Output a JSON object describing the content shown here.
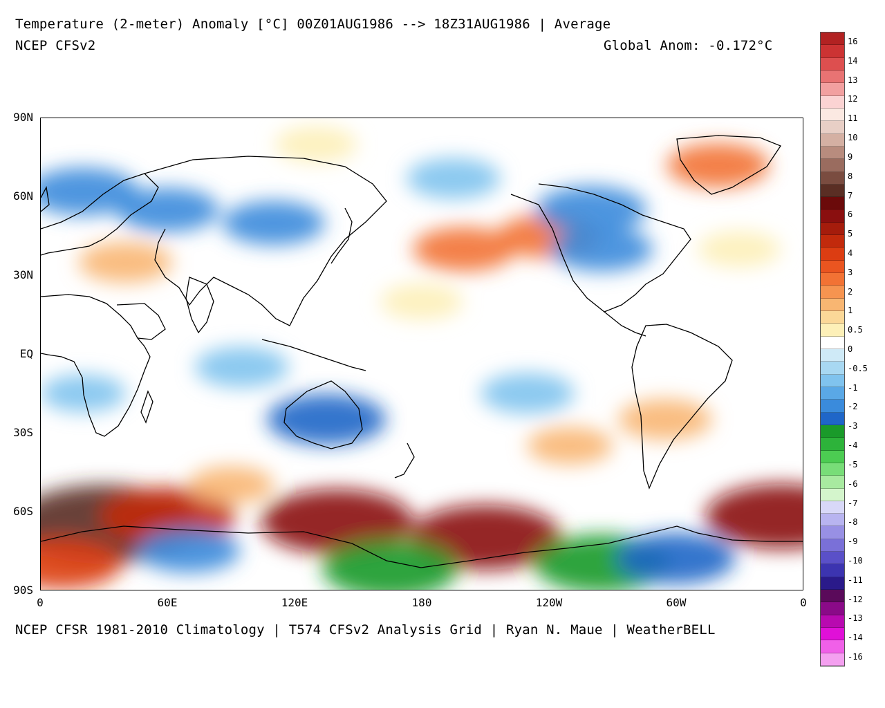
{
  "header": {
    "title": "Temperature (2-meter) Anomaly  [°C] 00Z01AUG1986 --> 18Z31AUG1986 | Average",
    "model": "NCEP CFSv2",
    "global_anom": "Global Anom: -0.172°C"
  },
  "footer": "NCEP CFSR 1981-2010 Climatology | T574 CFSv2 Analysis Grid | Ryan N. Maue | WeatherBELL",
  "axes": {
    "lat_labels": [
      "90N",
      "60N",
      "30N",
      "EQ",
      "30S",
      "60S",
      "90S"
    ],
    "lon_labels": [
      "0",
      "60E",
      "120E",
      "180",
      "120W",
      "60W",
      "0"
    ]
  },
  "colorbar": {
    "labels": [
      "16",
      "14",
      "13",
      "12",
      "11",
      "10",
      "9",
      "8",
      "7",
      "6",
      "5",
      "4",
      "3",
      "2",
      "1",
      "0.5",
      "0",
      "-0.5",
      "-1",
      "-2",
      "-3",
      "-4",
      "-5",
      "-6",
      "-7",
      "-8",
      "-9",
      "-10",
      "-11",
      "-12",
      "-13",
      "-14",
      "-16"
    ],
    "colors": [
      "#b22222",
      "#cc3333",
      "#dd4f4f",
      "#e87373",
      "#f2a0a0",
      "#fbd3d3",
      "#fbe9e2",
      "#e8cfc6",
      "#d4b0a3",
      "#b88c7e",
      "#9a6c5f",
      "#7a4c40",
      "#5a2e24",
      "#6b0a0a",
      "#8a0f0f",
      "#a51c0c",
      "#c22a0c",
      "#dc3d12",
      "#ea5520",
      "#f27234",
      "#f69450",
      "#f8b672",
      "#fbd898",
      "#fdf0b8",
      "#ffffff",
      "#cfeaf7",
      "#a8d8f2",
      "#80c3ee",
      "#5aa8e6",
      "#3a8bdc",
      "#1f66c8",
      "#1a9a2a",
      "#2db33a",
      "#4ccc52",
      "#78dd78",
      "#a8eaa0",
      "#d4f5cc",
      "#d8d8f8",
      "#b8b4f0",
      "#9890e4",
      "#7a70d8",
      "#5a50c8",
      "#3c34b0",
      "#2a1a8a",
      "#5a0a5a",
      "#8a0a88",
      "#b80ab0",
      "#e010d8",
      "#f060e8",
      "#f4a0f0"
    ]
  },
  "chart_data": {
    "type": "heatmap",
    "title": "Temperature (2-meter) Anomaly  [°C] 00Z01AUG1986 --> 18Z31AUG1986 | Average",
    "xlim": [
      0,
      360
    ],
    "ylim": [
      -90,
      90
    ],
    "units": "°C",
    "color_levels": [
      16,
      14,
      13,
      12,
      11,
      10,
      9,
      8,
      7,
      6,
      5,
      4,
      3,
      2,
      1,
      0.5,
      0,
      -0.5,
      -1,
      -2,
      -3,
      -4,
      -5,
      -6,
      -7,
      -8,
      -9,
      -10,
      -11,
      -12,
      -13,
      -14,
      -16
    ],
    "anomaly_regions": [
      {
        "lon": 30,
        "lat": -65,
        "value": 7
      },
      {
        "lon": 60,
        "lat": -62,
        "value": 4
      },
      {
        "lon": 140,
        "lat": -64,
        "value": 5
      },
      {
        "lon": 210,
        "lat": -70,
        "value": 5
      },
      {
        "lon": 350,
        "lat": -62,
        "value": 5
      },
      {
        "lon": 10,
        "lat": -80,
        "value": 3
      },
      {
        "lon": 90,
        "lat": -50,
        "value": 1
      },
      {
        "lon": 70,
        "lat": -75,
        "value": -2
      },
      {
        "lon": 165,
        "lat": -82,
        "value": -4
      },
      {
        "lon": 265,
        "lat": -80,
        "value": -4
      },
      {
        "lon": 300,
        "lat": -78,
        "value": -3
      },
      {
        "lon": 135,
        "lat": -25,
        "value": -3
      },
      {
        "lon": 95,
        "lat": -5,
        "value": -1.5
      },
      {
        "lon": 200,
        "lat": 40,
        "value": 2
      },
      {
        "lon": 240,
        "lat": 45,
        "value": 2
      },
      {
        "lon": 320,
        "lat": 72,
        "value": 2
      },
      {
        "lon": 60,
        "lat": 55,
        "value": -2
      },
      {
        "lon": 20,
        "lat": 62,
        "value": -2.5
      },
      {
        "lon": 110,
        "lat": 50,
        "value": -2
      },
      {
        "lon": 260,
        "lat": 55,
        "value": -2.5
      },
      {
        "lon": 265,
        "lat": 40,
        "value": -2
      },
      {
        "lon": 195,
        "lat": 67,
        "value": -1.5
      },
      {
        "lon": 130,
        "lat": 80,
        "value": 0.8
      },
      {
        "lon": 40,
        "lat": 35,
        "value": 1.5
      },
      {
        "lon": 180,
        "lat": 20,
        "value": 0.8
      },
      {
        "lon": 295,
        "lat": -25,
        "value": 1.5
      },
      {
        "lon": 250,
        "lat": -35,
        "value": 1
      },
      {
        "lon": 330,
        "lat": 40,
        "value": 0.8
      },
      {
        "lon": 230,
        "lat": -15,
        "value": -1.5
      },
      {
        "lon": 20,
        "lat": -15,
        "value": -1
      }
    ]
  }
}
